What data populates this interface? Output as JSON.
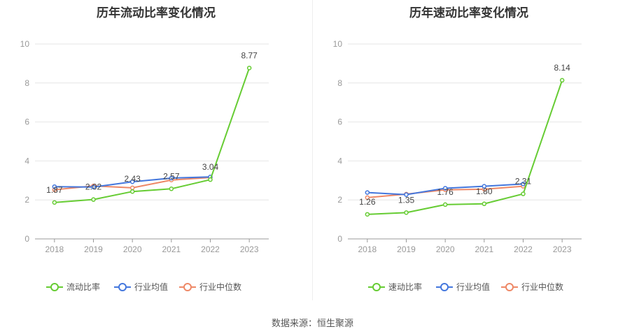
{
  "source_label": "数据来源：恒生聚源",
  "chart_data": [
    {
      "type": "line",
      "title": "历年流动比率变化情况",
      "categories": [
        "2018",
        "2019",
        "2020",
        "2021",
        "2022",
        "2023"
      ],
      "ylim": [
        0,
        10
      ],
      "yticks": [
        0,
        2,
        4,
        6,
        8,
        10
      ],
      "grid": true,
      "legend_position": "bottom",
      "labeled_series": "流动比率",
      "series": [
        {
          "name": "流动比率",
          "color": "#66cc33",
          "values": [
            1.87,
            2.02,
            2.43,
            2.57,
            3.04,
            8.77
          ]
        },
        {
          "name": "行业均值",
          "color": "#4477dd",
          "values": [
            2.68,
            2.66,
            2.93,
            3.12,
            3.18,
            null
          ]
        },
        {
          "name": "行业中位数",
          "color": "#ee8866",
          "values": [
            2.52,
            2.72,
            2.62,
            3.02,
            3.15,
            null
          ]
        }
      ],
      "data_labels": [
        "1.87",
        "2.02",
        "2.43",
        "2.57",
        "3.04",
        "8.77"
      ]
    },
    {
      "type": "line",
      "title": "历年速动比率变化情况",
      "categories": [
        "2018",
        "2019",
        "2020",
        "2021",
        "2022",
        "2023"
      ],
      "ylim": [
        0,
        10
      ],
      "yticks": [
        0,
        2,
        4,
        6,
        8,
        10
      ],
      "grid": true,
      "legend_position": "bottom",
      "labeled_series": "速动比率",
      "series": [
        {
          "name": "速动比率",
          "color": "#66cc33",
          "values": [
            1.26,
            1.35,
            1.76,
            1.8,
            2.31,
            8.14
          ]
        },
        {
          "name": "行业均值",
          "color": "#4477dd",
          "values": [
            2.38,
            2.27,
            2.6,
            2.7,
            2.82,
            null
          ]
        },
        {
          "name": "行业中位数",
          "color": "#ee8866",
          "values": [
            2.12,
            2.3,
            2.52,
            2.55,
            2.7,
            null
          ]
        }
      ],
      "data_labels": [
        "1.26",
        "1.35",
        "1.76",
        "1.80",
        "2.31",
        "8.14"
      ]
    }
  ]
}
